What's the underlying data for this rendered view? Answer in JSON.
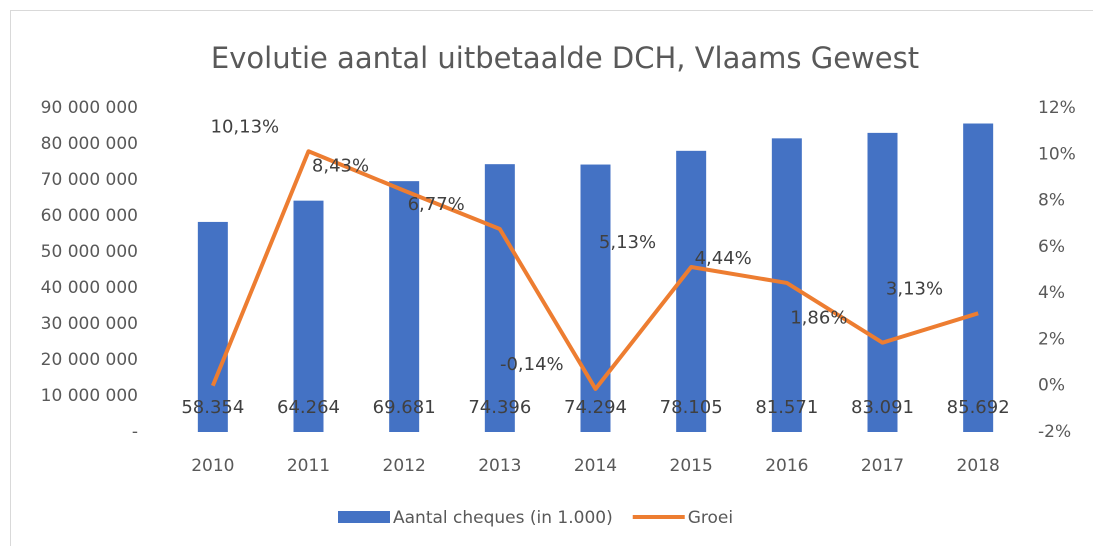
{
  "chart_data": {
    "type": "bar",
    "title": "Evolutie aantal uitbetaalde DCH, Vlaams Gewest",
    "categories": [
      "2010",
      "2011",
      "2012",
      "2013",
      "2014",
      "2015",
      "2016",
      "2017",
      "2018"
    ],
    "series": [
      {
        "name": "Aantal cheques (in 1.000)",
        "type": "bar",
        "color": "#4472c4",
        "values": [
          58354000,
          64264000,
          69681000,
          74396000,
          74294000,
          78105000,
          81571000,
          83091000,
          85692000
        ],
        "value_labels": [
          "58.354",
          "64.264",
          "69.681",
          "74.396",
          "74.294",
          "78.105",
          "81.571",
          "83.091",
          "85.692"
        ]
      },
      {
        "name": "Groei",
        "type": "line",
        "axis": "y2",
        "color": "#ed7d31",
        "values": [
          0,
          10.13,
          8.43,
          6.77,
          -0.14,
          5.13,
          4.44,
          1.86,
          3.13
        ],
        "value_labels": [
          null,
          "10,13%",
          "8,43%",
          "6,77%",
          "-0,14%",
          "5,13%",
          "4,44%",
          "1,86%",
          "3,13%"
        ]
      }
    ],
    "ylim": [
      0,
      90000000
    ],
    "yticks": [
      {
        "value": 0,
        "label": "-"
      },
      {
        "value": 10000000,
        "label": "10 000 000"
      },
      {
        "value": 20000000,
        "label": "20 000 000"
      },
      {
        "value": 30000000,
        "label": "30 000 000"
      },
      {
        "value": 40000000,
        "label": "40 000 000"
      },
      {
        "value": 50000000,
        "label": "50 000 000"
      },
      {
        "value": 60000000,
        "label": "60 000 000"
      },
      {
        "value": 70000000,
        "label": "70 000 000"
      },
      {
        "value": 80000000,
        "label": "80 000 000"
      },
      {
        "value": 90000000,
        "label": "90 000 000"
      }
    ],
    "y2lim": [
      -2,
      12
    ],
    "y2ticks": [
      {
        "value": -2,
        "label": "-2%"
      },
      {
        "value": 0,
        "label": "0%"
      },
      {
        "value": 2,
        "label": "2%"
      },
      {
        "value": 4,
        "label": "4%"
      },
      {
        "value": 6,
        "label": "6%"
      },
      {
        "value": 8,
        "label": "8%"
      },
      {
        "value": 10,
        "label": "10%"
      },
      {
        "value": 12,
        "label": "12%"
      }
    ],
    "grid": false,
    "legend": "bottom"
  }
}
